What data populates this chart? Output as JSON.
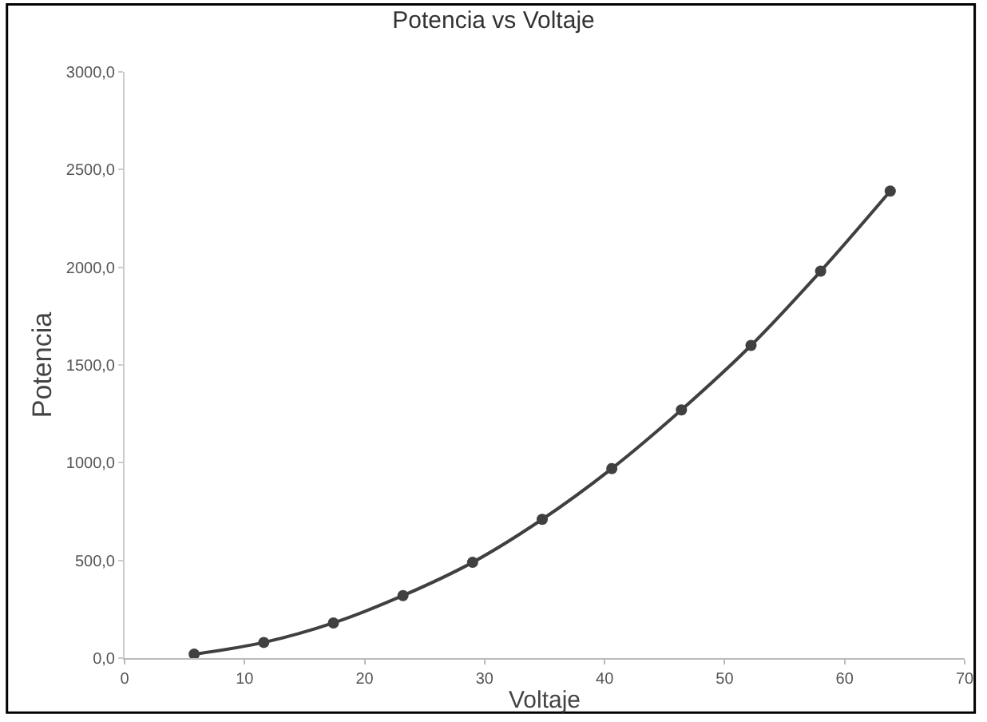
{
  "chart_data": {
    "type": "line",
    "title": "Potencia vs Voltaje",
    "xlabel": "Voltaje",
    "ylabel": "Potencia",
    "x": [
      5.8,
      11.6,
      17.4,
      23.2,
      29.0,
      34.8,
      40.6,
      46.4,
      52.2,
      58.0,
      63.8
    ],
    "series": [
      {
        "color": "#404040",
        "values": [
          20,
          80,
          180,
          320,
          490,
          710,
          970,
          1270,
          1600,
          1980,
          2390
        ]
      }
    ],
    "xlim": [
      0,
      70
    ],
    "xticks": [
      0,
      10,
      20,
      30,
      40,
      50,
      60,
      70
    ],
    "ylim": [
      0,
      3000
    ],
    "yticks": [
      {
        "value": 0,
        "label": "0,0"
      },
      {
        "value": 500,
        "label": "500,0"
      },
      {
        "value": 1000,
        "label": "1000,0"
      },
      {
        "value": 1500,
        "label": "1500,0"
      },
      {
        "value": 2000,
        "label": "2000,0"
      },
      {
        "value": 2500,
        "label": "2500,0"
      },
      {
        "value": 3000,
        "label": "3000,0"
      }
    ],
    "marker": "circle",
    "line_style": "solid"
  }
}
